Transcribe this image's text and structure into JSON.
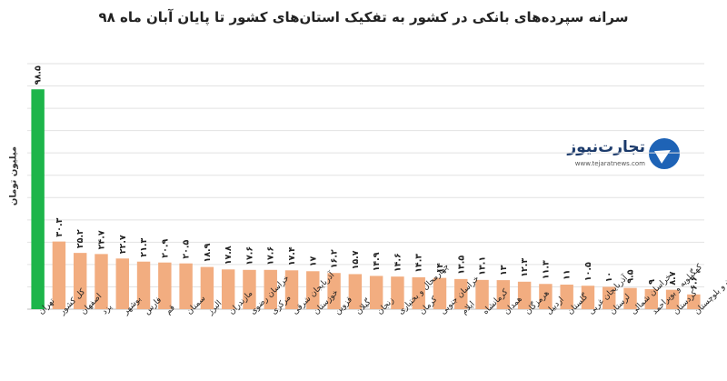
{
  "title": "سرانه سپرده‌های بانکی در کشور به تفکیک استان‌های کشور تا پایان آبان ماه ۹۸",
  "logo": {
    "name": "تجارت‌نیوز",
    "site": "www.tejaratnews.com"
  },
  "colors": {
    "highlight": "#1db54a",
    "bar": "#f2ad80",
    "grid": "#e2e2e2"
  },
  "chart_data": {
    "type": "bar",
    "title": "سرانه سپرده‌های بانکی در کشور به تفکیک استان‌های کشور تا پایان آبان ماه ۹۸",
    "ylabel": "میلیون تومان",
    "xlabel": "",
    "grid": true,
    "ylim": [
      0,
      110
    ],
    "categories": [
      "تهران",
      "کل کشور",
      "اصفهان",
      "یزد",
      "بوشهر",
      "فارس",
      "قم",
      "سمنان",
      "البرز",
      "مازندران",
      "خراسان رضوی",
      "مرکزی",
      "آذربایجان شرقی",
      "خوزستان",
      "قزوین",
      "گیلان",
      "زنجان",
      "چهارمحال و بختیاری",
      "کرمان",
      "خراسان جنوبی",
      "ایلام",
      "کرمانشاه",
      "همدان",
      "هرمزگان",
      "اردبیل",
      "گلستان",
      "آذربایجان غربی",
      "لرستان",
      "خراسان شمالی",
      "کهگیلویه و بویراحمد",
      "کردستان",
      "سیستان و بلوچستان"
    ],
    "values": [
      98.5,
      30.3,
      25.2,
      24.7,
      22.7,
      21.3,
      20.9,
      20.5,
      18.9,
      17.8,
      17.6,
      17.6,
      17.4,
      17,
      16.2,
      15.7,
      14.9,
      14.6,
      14.3,
      14,
      13.5,
      13.1,
      13,
      12.3,
      11.3,
      11,
      10.5,
      10,
      9.5,
      9,
      8.7,
      6.6
    ],
    "value_labels": [
      "۹۸.۵",
      "۳۰.۳",
      "۲۵.۲",
      "۲۴.۷",
      "۲۲.۷",
      "۲۱.۳",
      "۲۰.۹",
      "۲۰.۵",
      "۱۸.۹",
      "۱۷.۸",
      "۱۷.۶",
      "۱۷.۶",
      "۱۷.۴",
      "۱۷",
      "۱۶.۲",
      "۱۵.۷",
      "۱۴.۹",
      "۱۴.۶",
      "۱۴.۳",
      "۱۴",
      "۱۳.۵",
      "۱۳.۱",
      "۱۳",
      "۱۲.۳",
      "۱۱.۳",
      "۱۱",
      "۱۰.۵",
      "۱۰",
      "۹.۵",
      "۹",
      "۸.۷",
      "۶.۶"
    ]
  }
}
